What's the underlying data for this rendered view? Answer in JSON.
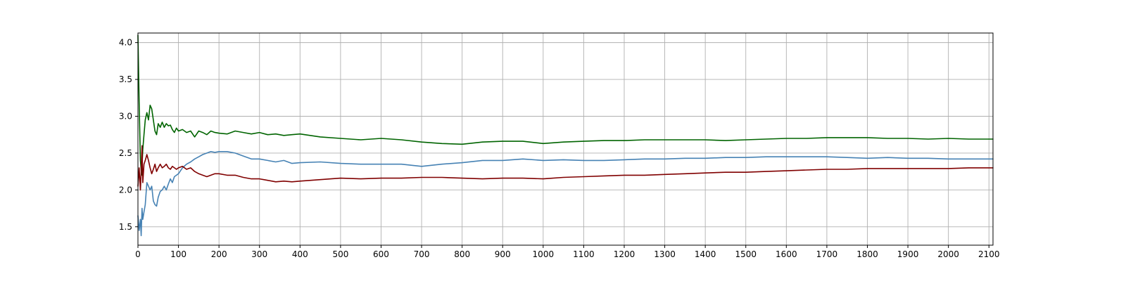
{
  "chart_data": {
    "type": "line",
    "title": "",
    "xlabel": "",
    "ylabel": "",
    "xlim": [
      0,
      2110
    ],
    "ylim": [
      1.25,
      4.13
    ],
    "grid": true,
    "legend": "none",
    "x_ticks": [
      0,
      100,
      200,
      300,
      400,
      500,
      600,
      700,
      800,
      900,
      1000,
      1100,
      1200,
      1300,
      1400,
      1500,
      1600,
      1700,
      1800,
      1900,
      2000,
      2100
    ],
    "y_ticks": [
      1.5,
      2.0,
      2.5,
      3.0,
      3.5,
      4.0
    ],
    "y_tick_labels": [
      "1.5",
      "2.0",
      "2.5",
      "3.0",
      "3.5",
      "4.0"
    ],
    "series": [
      {
        "color": "#006400",
        "x": [
          0,
          3,
          6,
          9,
          12,
          15,
          18,
          22,
          26,
          30,
          34,
          38,
          42,
          46,
          50,
          55,
          60,
          65,
          70,
          75,
          80,
          85,
          90,
          95,
          100,
          110,
          120,
          130,
          140,
          150,
          160,
          170,
          180,
          190,
          200,
          220,
          240,
          260,
          280,
          300,
          320,
          340,
          360,
          380,
          400,
          450,
          500,
          550,
          600,
          650,
          700,
          750,
          800,
          850,
          900,
          950,
          1000,
          1050,
          1100,
          1150,
          1200,
          1250,
          1300,
          1350,
          1400,
          1450,
          1500,
          1550,
          1600,
          1650,
          1700,
          1750,
          1800,
          1850,
          1900,
          1950,
          2000,
          2050,
          2110
        ],
        "values": [
          4.1,
          3.2,
          2.4,
          2.2,
          2.55,
          2.75,
          2.95,
          3.05,
          2.95,
          3.15,
          3.1,
          2.95,
          2.8,
          2.75,
          2.9,
          2.85,
          2.92,
          2.85,
          2.9,
          2.87,
          2.88,
          2.82,
          2.78,
          2.84,
          2.8,
          2.82,
          2.78,
          2.8,
          2.72,
          2.8,
          2.78,
          2.75,
          2.8,
          2.78,
          2.77,
          2.76,
          2.8,
          2.78,
          2.76,
          2.78,
          2.75,
          2.76,
          2.74,
          2.75,
          2.76,
          2.72,
          2.7,
          2.68,
          2.7,
          2.68,
          2.65,
          2.63,
          2.62,
          2.65,
          2.66,
          2.66,
          2.63,
          2.65,
          2.66,
          2.67,
          2.67,
          2.68,
          2.68,
          2.68,
          2.68,
          2.67,
          2.68,
          2.69,
          2.7,
          2.7,
          2.71,
          2.71,
          2.71,
          2.7,
          2.7,
          2.69,
          2.7,
          2.69,
          2.69
        ]
      },
      {
        "color": "#4682b4",
        "x": [
          0,
          3,
          6,
          8,
          10,
          12,
          15,
          18,
          22,
          26,
          30,
          34,
          38,
          42,
          46,
          50,
          55,
          60,
          65,
          70,
          75,
          80,
          85,
          90,
          95,
          100,
          110,
          120,
          130,
          140,
          150,
          160,
          170,
          180,
          190,
          200,
          220,
          240,
          260,
          280,
          300,
          320,
          340,
          360,
          380,
          400,
          450,
          500,
          550,
          600,
          650,
          700,
          750,
          800,
          850,
          900,
          950,
          1000,
          1050,
          1100,
          1150,
          1200,
          1250,
          1300,
          1350,
          1400,
          1450,
          1500,
          1550,
          1600,
          1650,
          1700,
          1750,
          1800,
          1850,
          1900,
          1950,
          2000,
          2050,
          2110
        ],
        "values": [
          1.65,
          1.45,
          1.6,
          1.38,
          1.75,
          1.6,
          1.7,
          1.8,
          2.1,
          2.05,
          2.0,
          2.05,
          1.85,
          1.8,
          1.78,
          1.9,
          1.98,
          2.0,
          2.05,
          2.0,
          2.08,
          2.15,
          2.1,
          2.18,
          2.2,
          2.22,
          2.3,
          2.35,
          2.38,
          2.42,
          2.45,
          2.48,
          2.5,
          2.52,
          2.51,
          2.52,
          2.52,
          2.5,
          2.46,
          2.42,
          2.42,
          2.4,
          2.38,
          2.4,
          2.36,
          2.37,
          2.38,
          2.36,
          2.35,
          2.35,
          2.35,
          2.32,
          2.35,
          2.37,
          2.4,
          2.4,
          2.42,
          2.4,
          2.41,
          2.4,
          2.4,
          2.41,
          2.42,
          2.42,
          2.43,
          2.43,
          2.44,
          2.44,
          2.45,
          2.45,
          2.45,
          2.45,
          2.44,
          2.43,
          2.44,
          2.43,
          2.43,
          2.42,
          2.42,
          2.42
        ]
      },
      {
        "color": "#800000",
        "x": [
          0,
          3,
          6,
          8,
          10,
          12,
          15,
          18,
          22,
          26,
          30,
          34,
          38,
          42,
          46,
          50,
          55,
          60,
          65,
          70,
          75,
          80,
          85,
          90,
          95,
          100,
          110,
          120,
          130,
          140,
          150,
          160,
          170,
          180,
          190,
          200,
          220,
          240,
          260,
          280,
          300,
          320,
          340,
          360,
          380,
          400,
          450,
          500,
          550,
          600,
          650,
          700,
          750,
          800,
          850,
          900,
          950,
          1000,
          1050,
          1100,
          1150,
          1200,
          1250,
          1300,
          1350,
          1400,
          1450,
          1500,
          1550,
          1600,
          1650,
          1700,
          1750,
          1800,
          1850,
          1900,
          1950,
          2000,
          2050,
          2110
        ],
        "values": [
          2.05,
          2.3,
          2.0,
          2.25,
          2.6,
          2.1,
          2.35,
          2.4,
          2.48,
          2.4,
          2.3,
          2.22,
          2.28,
          2.35,
          2.25,
          2.3,
          2.35,
          2.3,
          2.32,
          2.35,
          2.3,
          2.28,
          2.32,
          2.3,
          2.28,
          2.3,
          2.32,
          2.28,
          2.3,
          2.25,
          2.22,
          2.2,
          2.18,
          2.2,
          2.22,
          2.22,
          2.2,
          2.2,
          2.17,
          2.15,
          2.15,
          2.13,
          2.11,
          2.12,
          2.11,
          2.12,
          2.14,
          2.16,
          2.15,
          2.16,
          2.16,
          2.17,
          2.17,
          2.16,
          2.15,
          2.16,
          2.16,
          2.15,
          2.17,
          2.18,
          2.19,
          2.2,
          2.2,
          2.21,
          2.22,
          2.23,
          2.24,
          2.24,
          2.25,
          2.26,
          2.27,
          2.28,
          2.28,
          2.29,
          2.29,
          2.29,
          2.29,
          2.29,
          2.3,
          2.3
        ]
      }
    ]
  }
}
